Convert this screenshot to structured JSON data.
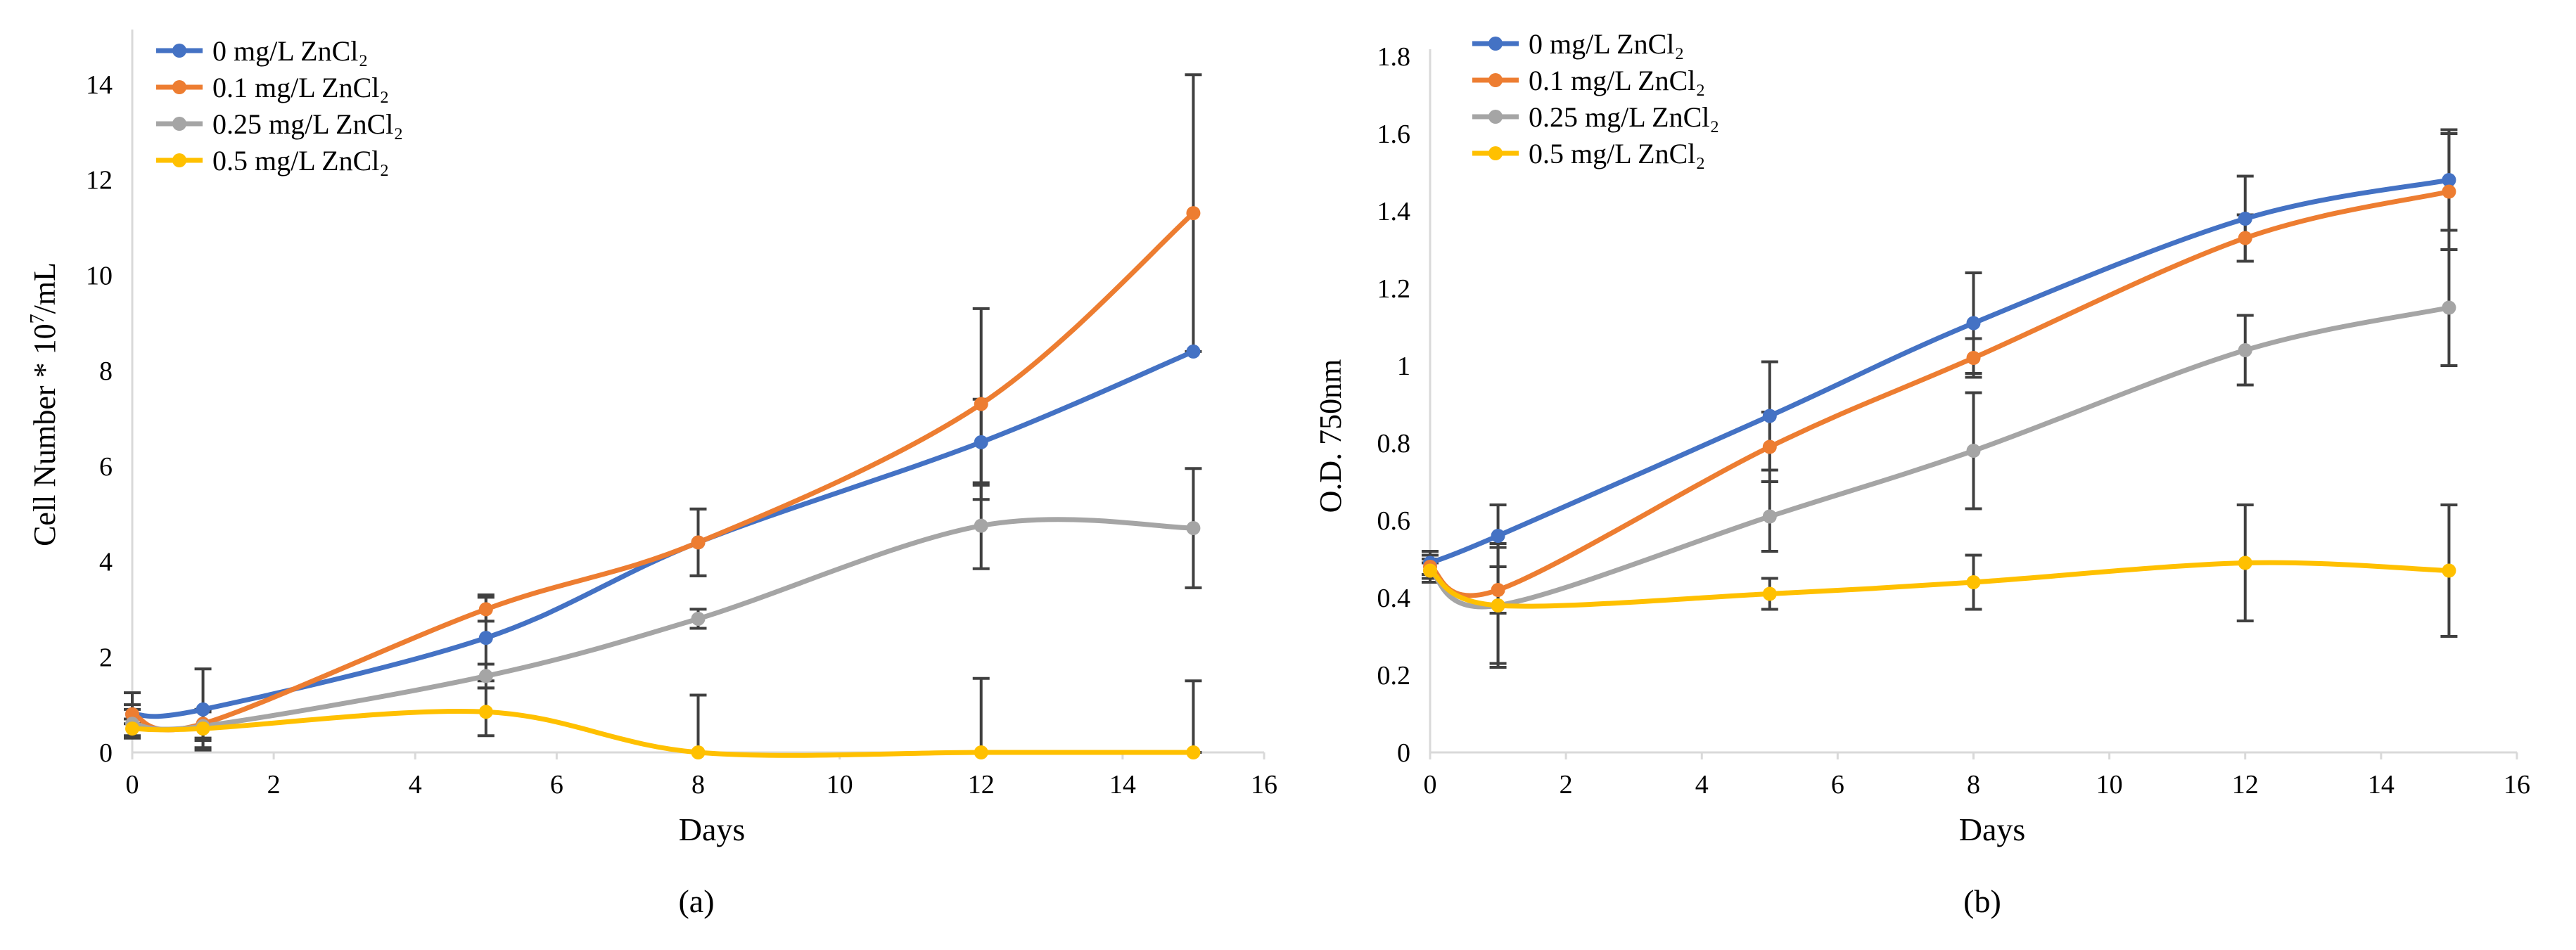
{
  "colors": {
    "series": [
      "#4472C4",
      "#ED7D31",
      "#A5A5A5",
      "#FFC000"
    ],
    "axis": "#D9D9D9",
    "error_bar": "#404040",
    "text": "#000000"
  },
  "chart_data": [
    {
      "type": "line",
      "smooth": true,
      "markers": true,
      "error_bars": true,
      "panel_label": "(a)",
      "xlabel": "Days",
      "ylabel": "Cell Number * 10",
      "ylabel_sup": "7",
      "ylabel_suffix": "/mL",
      "xlim": [
        0,
        16
      ],
      "ylim": [
        0,
        15
      ],
      "xticks": [
        0,
        2,
        4,
        6,
        8,
        10,
        12,
        14,
        16
      ],
      "yticks": [
        0,
        2,
        4,
        6,
        8,
        10,
        12,
        14
      ],
      "legend_position": "top-left",
      "x": [
        0,
        1,
        5,
        8,
        12,
        15
      ],
      "series": [
        {
          "name": "0 mg/L ZnCl₂",
          "values": [
            0.8,
            0.9,
            2.4,
            4.4,
            6.5,
            8.4
          ],
          "errors": [
            0.45,
            0.85,
            0.9,
            0.7,
            0.9,
            0
          ]
        },
        {
          "name": "0.1 mg/L ZnCl₂",
          "values": [
            0.8,
            0.6,
            3.0,
            4.4,
            7.3,
            11.3
          ],
          "errors": [
            0.2,
            0.3,
            0.25,
            0.7,
            2.0,
            2.9
          ]
        },
        {
          "name": "0.25 mg/L ZnCl₂",
          "values": [
            0.6,
            0.55,
            1.6,
            2.8,
            4.75,
            4.7
          ],
          "errors": [
            0.3,
            0.3,
            0.25,
            0.2,
            0.9,
            1.25
          ]
        },
        {
          "name": "0.5 mg/L ZnCl₂",
          "values": [
            0.5,
            0.5,
            0.85,
            0.0,
            0.0,
            0.0
          ],
          "errors": [
            0.2,
            0.4,
            0.5,
            1.2,
            1.55,
            1.5
          ]
        }
      ]
    },
    {
      "type": "line",
      "smooth": true,
      "markers": true,
      "error_bars": true,
      "panel_label": "(b)",
      "xlabel": "Days",
      "ylabel": "O.D. 750nm",
      "xlim": [
        0,
        16
      ],
      "ylim": [
        0,
        1.8
      ],
      "xticks": [
        0,
        2,
        4,
        6,
        8,
        10,
        12,
        14,
        16
      ],
      "yticks": [
        0,
        0.2,
        0.4,
        0.6,
        0.8,
        1.0,
        1.2,
        1.4,
        1.6,
        1.8
      ],
      "ytick_labels": [
        "0",
        "0.2",
        "0.4",
        "0.6",
        "0.8",
        "1",
        "1.2",
        "1.4",
        "1.6",
        "1.8"
      ],
      "legend_position": "top-left",
      "x": [
        0,
        1,
        5,
        8,
        12,
        15
      ],
      "series": [
        {
          "name": "0 mg/L ZnCl₂",
          "values": [
            0.49,
            0.56,
            0.87,
            1.11,
            1.38,
            1.48
          ],
          "errors": [
            0.03,
            0.08,
            0.14,
            0.13,
            0.11,
            0.13
          ]
        },
        {
          "name": "0.1 mg/L ZnCl₂",
          "values": [
            0.48,
            0.42,
            0.79,
            1.02,
            1.33,
            1.45
          ],
          "errors": [
            0.03,
            0.06,
            0.09,
            0.05,
            0.06,
            0.15
          ]
        },
        {
          "name": "0.25 mg/L ZnCl₂",
          "values": [
            0.47,
            0.38,
            0.61,
            0.78,
            1.04,
            1.15
          ],
          "errors": [
            0.02,
            0.16,
            0.09,
            0.15,
            0.09,
            0.15
          ]
        },
        {
          "name": "0.5 mg/L ZnCl₂",
          "values": [
            0.47,
            0.38,
            0.41,
            0.44,
            0.49,
            0.47
          ],
          "errors": [
            0.03,
            0.15,
            0.04,
            0.07,
            0.15,
            0.17
          ]
        }
      ]
    }
  ]
}
